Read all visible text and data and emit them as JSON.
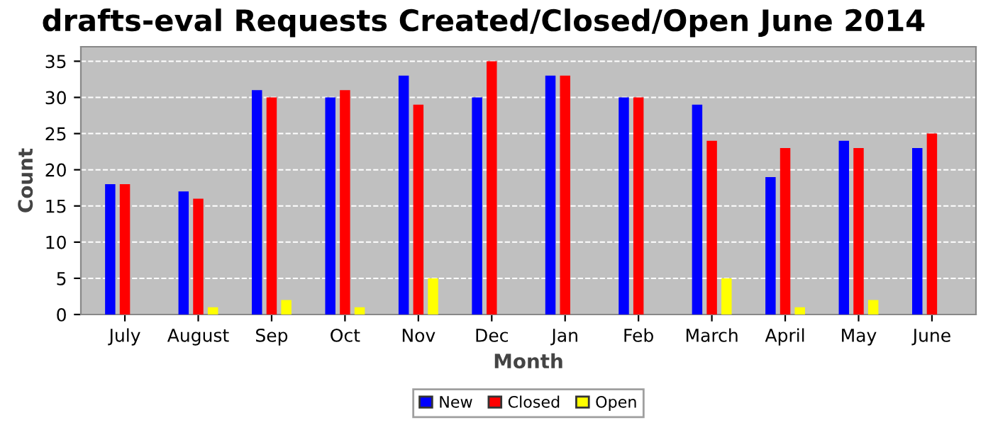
{
  "chart_data": {
    "type": "bar",
    "title": "drafts-eval Requests Created/Closed/Open June 2014",
    "xlabel": "Month",
    "ylabel": "Count",
    "categories": [
      "July",
      "August",
      "Sep",
      "Oct",
      "Nov",
      "Dec",
      "Jan",
      "Feb",
      "March",
      "April",
      "May",
      "June"
    ],
    "series": [
      {
        "name": "New",
        "color": "#0000ff",
        "values": [
          18,
          17,
          31,
          30,
          33,
          30,
          33,
          30,
          29,
          19,
          24,
          23
        ]
      },
      {
        "name": "Closed",
        "color": "#ff0000",
        "values": [
          18,
          16,
          30,
          31,
          29,
          35,
          33,
          30,
          24,
          23,
          23,
          25
        ]
      },
      {
        "name": "Open",
        "color": "#ffff00",
        "values": [
          0,
          1,
          2,
          1,
          5,
          0,
          0,
          0,
          5,
          1,
          2,
          0
        ]
      }
    ],
    "ylim": [
      0,
      37
    ],
    "yticks": [
      0,
      5,
      10,
      15,
      20,
      25,
      30,
      35
    ],
    "grid": "y",
    "legend": "bottom"
  }
}
